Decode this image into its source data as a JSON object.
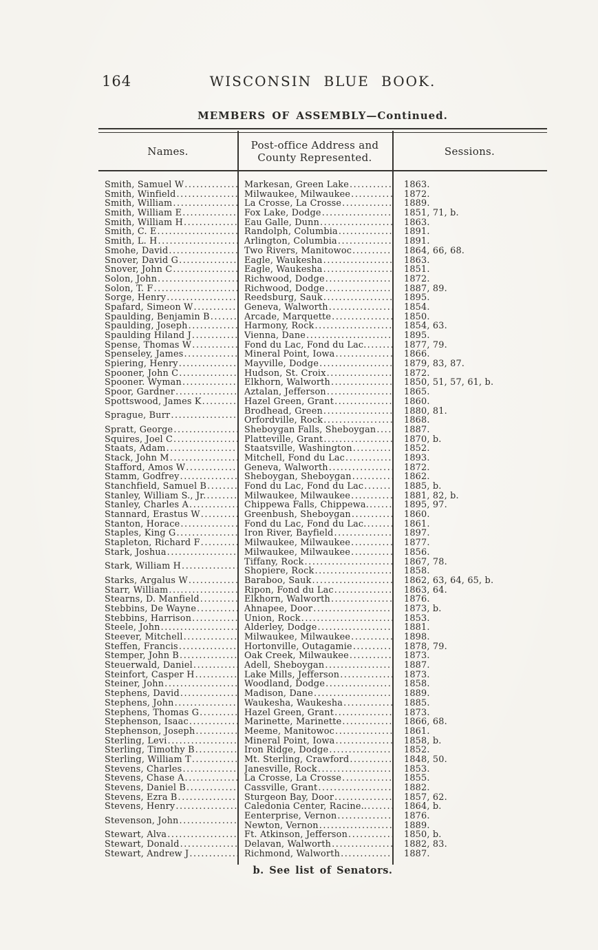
{
  "page": {
    "number": "164",
    "title": "WISCONSIN BLUE BOOK.",
    "subtitle": "MEMBERS OF ASSEMBLY—Continued.",
    "footnote": "b. See list of Senators."
  },
  "table": {
    "headers": {
      "names": "Names.",
      "address_line1": "Post-office Address and",
      "address_line2": "County Represented.",
      "sessions": "Sessions."
    },
    "leader": "............................................................",
    "rows": [
      {
        "name": "Smith, Samuel W",
        "entries": [
          {
            "address": "Markesan, Green Lake",
            "sessions": "1863."
          }
        ]
      },
      {
        "name": "Smith, Winfield",
        "entries": [
          {
            "address": "Milwaukee, Milwaukee",
            "sessions": "1872."
          }
        ]
      },
      {
        "name": "Smith, William",
        "entries": [
          {
            "address": "La Crosse, La Crosse",
            "sessions": "1889."
          }
        ]
      },
      {
        "name": "Smith, William E",
        "entries": [
          {
            "address": "Fox Lake, Dodge",
            "sessions": "1851, 71, b."
          }
        ]
      },
      {
        "name": "Smith, William H",
        "entries": [
          {
            "address": "Eau Galle, Dunn",
            "sessions": "1863."
          }
        ]
      },
      {
        "name": "Smith, C. E",
        "entries": [
          {
            "address": "Randolph, Columbia",
            "sessions": "1891."
          }
        ]
      },
      {
        "name": "Smith, L. H",
        "entries": [
          {
            "address": "Arlington, Columbia",
            "sessions": "1891."
          }
        ]
      },
      {
        "name": "Smohe, David",
        "entries": [
          {
            "address": "Two Rivers, Manitowoc",
            "sessions": "1864, 66, 68."
          }
        ]
      },
      {
        "name": "Snover, David G",
        "entries": [
          {
            "address": "Eagle, Waukesha",
            "sessions": "1863."
          }
        ]
      },
      {
        "name": "Snover, John C",
        "entries": [
          {
            "address": "Eagle, Waukesha",
            "sessions": "1851."
          }
        ]
      },
      {
        "name": "Solon, John",
        "entries": [
          {
            "address": "Richwood, Dodge",
            "sessions": "1872."
          }
        ]
      },
      {
        "name": "Solon, T. F",
        "entries": [
          {
            "address": "Richwood, Dodge",
            "sessions": "1887, 89."
          }
        ]
      },
      {
        "name": "Sorge, Henry",
        "entries": [
          {
            "address": "Reedsburg, Sauk",
            "sessions": "1895."
          }
        ]
      },
      {
        "name": "Spafard, Simeon W",
        "entries": [
          {
            "address": "Geneva, Walworth",
            "sessions": "1854."
          }
        ]
      },
      {
        "name": "Spaulding, Benjamin B",
        "entries": [
          {
            "address": "Arcade, Marquette",
            "sessions": "1850."
          }
        ]
      },
      {
        "name": "Spaulding, Joseph",
        "entries": [
          {
            "address": "Harmony, Rock",
            "sessions": "1854, 63."
          }
        ]
      },
      {
        "name": "Spaulding Hiland J",
        "entries": [
          {
            "address": "Vienna, Dane",
            "sessions": "1895."
          }
        ]
      },
      {
        "name": "Spense, Thomas W",
        "entries": [
          {
            "address": "Fond du Lac, Fond du Lac.",
            "sessions": "1877, 79."
          }
        ]
      },
      {
        "name": "Spenseley, James",
        "entries": [
          {
            "address": "Mineral Point, Iowa",
            "sessions": "1866."
          }
        ]
      },
      {
        "name": "Spiering, Henry",
        "entries": [
          {
            "address": "Mayville, Dodge",
            "sessions": "1879, 83, 87."
          }
        ]
      },
      {
        "name": "Spooner, John C",
        "entries": [
          {
            "address": "Hudson, St. Croix",
            "sessions": "1872."
          }
        ]
      },
      {
        "name": "Spooner. Wyman",
        "entries": [
          {
            "address": "Elkhorn, Walworth",
            "sessions": "1850, 51, 57, 61, b."
          }
        ]
      },
      {
        "name": "Spoor, Gardner",
        "entries": [
          {
            "address": "Aztalan, Jefferson",
            "sessions": "1865."
          }
        ]
      },
      {
        "name": "Spottswood, James K",
        "entries": [
          {
            "address": "Hazel Green, Grant",
            "sessions": "1860."
          }
        ]
      },
      {
        "name": "Sprague, Burr",
        "entries": [
          {
            "address": "Brodhead, Green",
            "sessions": "1880, 81."
          },
          {
            "address": "Orfordville, Rock",
            "sessions": "1868."
          }
        ]
      },
      {
        "name": "Spratt, George",
        "entries": [
          {
            "address": "Sheboygan Falls, Sheboygan",
            "sessions": "1887."
          }
        ]
      },
      {
        "name": "Squires, Joel C",
        "entries": [
          {
            "address": "Platteville, Grant",
            "sessions": "1870, b."
          }
        ]
      },
      {
        "name": "Staats, Adam",
        "entries": [
          {
            "address": "Staatsville, Washington",
            "sessions": "1852."
          }
        ]
      },
      {
        "name": "Stack, John M",
        "entries": [
          {
            "address": "Mitchell, Fond du Lac",
            "sessions": "1893."
          }
        ]
      },
      {
        "name": "Stafford, Amos W",
        "entries": [
          {
            "address": "Geneva, Walworth",
            "sessions": "1872."
          }
        ]
      },
      {
        "name": "Stamm, Godfrey",
        "entries": [
          {
            "address": "Sheboygan, Sheboygan",
            "sessions": "1862."
          }
        ]
      },
      {
        "name": "Stanchfield, Samuel B",
        "entries": [
          {
            "address": "Fond du Lac, Fond du Lac",
            "sessions": "1885, b."
          }
        ]
      },
      {
        "name": "Stanley, William S., Jr.",
        "entries": [
          {
            "address": "Milwaukee, Milwaukee",
            "sessions": "1881, 82, b."
          }
        ]
      },
      {
        "name": "Stanley, Charles A",
        "entries": [
          {
            "address": "Chippewa Falls, Chippewa.",
            "sessions": "1895, 97."
          }
        ]
      },
      {
        "name": "Stannard, Erastus W",
        "entries": [
          {
            "address": "Greenbush, Sheboygan",
            "sessions": "1860."
          }
        ]
      },
      {
        "name": "Stanton, Horace",
        "entries": [
          {
            "address": "Fond du Lac, Fond du Lac.",
            "sessions": "1861."
          }
        ]
      },
      {
        "name": "Staples, King G",
        "entries": [
          {
            "address": "Iron River, Bayfield",
            "sessions": "1897."
          }
        ]
      },
      {
        "name": "Stapleton, Richard F",
        "entries": [
          {
            "address": "Milwaukee, Milwaukee",
            "sessions": "1877."
          }
        ]
      },
      {
        "name": "Stark, Joshua",
        "entries": [
          {
            "address": "Milwaukee, Milwaukee",
            "sessions": "1856."
          }
        ]
      },
      {
        "name": "Stark, William H",
        "entries": [
          {
            "address": "Tiffany, Rock",
            "sessions": "1867, 78."
          },
          {
            "address": "Shopiere, Rock",
            "sessions": "1858."
          }
        ]
      },
      {
        "name": "Starks, Argalus W",
        "entries": [
          {
            "address": "Baraboo, Sauk",
            "sessions": "1862, 63, 64, 65, b."
          }
        ]
      },
      {
        "name": "Starr, William",
        "entries": [
          {
            "address": "Ripon, Fond du Lac",
            "sessions": "1863, 64."
          }
        ]
      },
      {
        "name": "Stearns, D. Manfield",
        "entries": [
          {
            "address": "Elkhorn, Walworth",
            "sessions": "1876."
          }
        ]
      },
      {
        "name": "Stebbins, De Wayne",
        "entries": [
          {
            "address": "Ahnapee, Door",
            "sessions": "1873, b."
          }
        ]
      },
      {
        "name": "Stebbins, Harrison",
        "entries": [
          {
            "address": "Union, Rock",
            "sessions": "1853."
          }
        ]
      },
      {
        "name": "Steele, John",
        "entries": [
          {
            "address": "Alderley, Dodge",
            "sessions": "1881."
          }
        ]
      },
      {
        "name": "Steever, Mitchell",
        "entries": [
          {
            "address": "Milwaukee, Milwaukee",
            "sessions": "1898."
          }
        ]
      },
      {
        "name": "Steffen, Francis",
        "entries": [
          {
            "address": "Hortonville, Outagamie",
            "sessions": "1878, 79."
          }
        ]
      },
      {
        "name": "Stemper, John B",
        "entries": [
          {
            "address": "Oak Creek, Milwaukee",
            "sessions": "1873."
          }
        ]
      },
      {
        "name": "Steuerwald, Daniel",
        "entries": [
          {
            "address": "Adell, Sheboygan",
            "sessions": "1887."
          }
        ]
      },
      {
        "name": "Steinfort, Casper H",
        "entries": [
          {
            "address": "Lake Mills, Jefferson",
            "sessions": "1873."
          }
        ]
      },
      {
        "name": "Steiner, John",
        "entries": [
          {
            "address": "Woodland, Dodge",
            "sessions": "1858."
          }
        ]
      },
      {
        "name": "Stephens, David",
        "entries": [
          {
            "address": "Madison, Dane",
            "sessions": "1889."
          }
        ]
      },
      {
        "name": "Stephens, John",
        "entries": [
          {
            "address": "Waukesha, Waukesha",
            "sessions": "1885."
          }
        ]
      },
      {
        "name": "Stephens, Thomas G",
        "entries": [
          {
            "address": "Hazel Green, Grant",
            "sessions": "1873."
          }
        ]
      },
      {
        "name": "Stephenson, Isaac",
        "entries": [
          {
            "address": "Marinette, Marinette",
            "sessions": "1866, 68."
          }
        ]
      },
      {
        "name": "Stephenson, Joseph",
        "entries": [
          {
            "address": "Meeme, Manitowoc",
            "sessions": "1861."
          }
        ]
      },
      {
        "name": "Sterling, Levi",
        "entries": [
          {
            "address": "Mineral Point, Iowa",
            "sessions": "1858, b."
          }
        ]
      },
      {
        "name": "Sterling, Timothy B",
        "entries": [
          {
            "address": "Iron Ridge, Dodge",
            "sessions": "1852."
          }
        ]
      },
      {
        "name": "Sterling, William T",
        "entries": [
          {
            "address": "Mt. Sterling, Crawford",
            "sessions": "1848, 50."
          }
        ]
      },
      {
        "name": "Stevens, Charles",
        "entries": [
          {
            "address": "Janesville, Rock",
            "sessions": "1853."
          }
        ]
      },
      {
        "name": "Stevens, Chase A",
        "entries": [
          {
            "address": "La Crosse, La Crosse",
            "sessions": "1855."
          }
        ]
      },
      {
        "name": "Stevens, Daniel B",
        "entries": [
          {
            "address": "Cassville, Grant",
            "sessions": "1882."
          }
        ]
      },
      {
        "name": "Stevens, Ezra B",
        "entries": [
          {
            "address": "Sturgeon Bay, Door",
            "sessions": "1857, 62."
          }
        ]
      },
      {
        "name": "Stevens, Henry",
        "entries": [
          {
            "address": "Caledonia Center, Racine..",
            "sessions": "1864, b."
          }
        ]
      },
      {
        "name": "Stevenson, John",
        "entries": [
          {
            "address": "Eenterprise, Vernon",
            "sessions": "1876."
          },
          {
            "address": "Newton, Vernon",
            "sessions": "1889."
          }
        ]
      },
      {
        "name": "Stewart, Alva",
        "entries": [
          {
            "address": "Ft. Atkinson, Jefferson",
            "sessions": "1850, b."
          }
        ]
      },
      {
        "name": "Stewart, Donald",
        "entries": [
          {
            "address": "Delavan, Walworth",
            "sessions": "1882, 83."
          }
        ]
      },
      {
        "name": "Stewart, Andrew J",
        "entries": [
          {
            "address": "Richmond, Walworth",
            "sessions": "1887."
          }
        ]
      }
    ]
  }
}
